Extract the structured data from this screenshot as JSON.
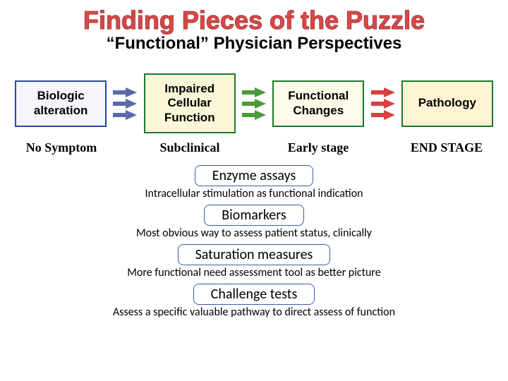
{
  "title": "Finding Pieces of the Puzzle",
  "subtitle": "“Functional” Physician Perspectives",
  "colors": {
    "title": "#d84848",
    "box_border_blue": "#2a4a9e",
    "box_border_green": "#1a7a2a",
    "arrow_blue": "#5a6aa8",
    "arrow_green": "#4a9a3a",
    "arrow_red": "#d84040",
    "fill_box1": "#f4f6fb",
    "fill_box2": "#faf6d8",
    "fill_box3": "#fdfbea",
    "fill_box4": "#fff4d4",
    "pill_border": "#3b5ea8"
  },
  "boxes": [
    {
      "text": "Biologic alteration",
      "fill": "#f4f6fb",
      "border": "#2a4a9e"
    },
    {
      "text": "Impaired Cellular Function",
      "fill": "#faf6d8",
      "border": "#1a7a2a"
    },
    {
      "text": "Functional Changes",
      "fill": "#fdfbea",
      "border": "#1a7a2a"
    },
    {
      "text": "Pathology",
      "fill": "#fff4d4",
      "border": "#1a7a2a"
    }
  ],
  "arrows": [
    {
      "color": "#5a6aa8"
    },
    {
      "color": "#4a9a3a"
    },
    {
      "color": "#d84040"
    }
  ],
  "labels": [
    "No Symptom",
    "Subclinical",
    "Early stage",
    "END STAGE"
  ],
  "pills": [
    {
      "label": "Enzyme assays",
      "caption": "Intracellular stimulation as functional indication"
    },
    {
      "label": "Biomarkers",
      "caption": "Most obvious way to assess patient status, clinically"
    },
    {
      "label": "Saturation measures",
      "caption": "More functional need assessment tool as better picture"
    },
    {
      "label": "Challenge tests",
      "caption": "Assess a specific valuable pathway to direct assess of function"
    }
  ]
}
